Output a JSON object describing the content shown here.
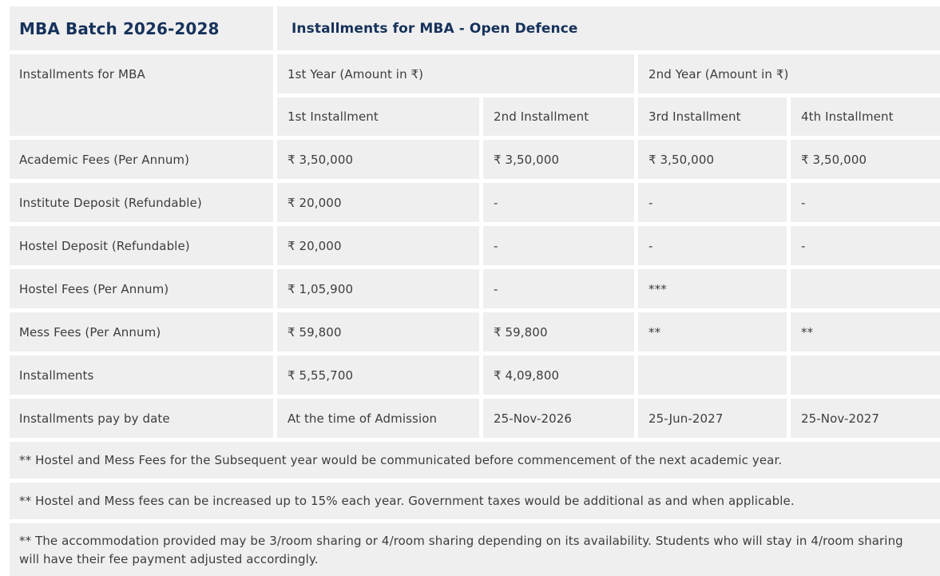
{
  "colors": {
    "heading_navy": "#16325b",
    "cell_background": "#efefef",
    "body_text": "#3d3d3d",
    "page_background": "#ffffff"
  },
  "table": {
    "batch_title": "MBA Batch 2026-2028",
    "main_title": "Installments for MBA - Open Defence",
    "group_label": "Installments for MBA",
    "year1_header": "1st Year (Amount in ₹)",
    "year2_header": "2nd Year (Amount in ₹)",
    "installment_headers": [
      "1st Installment",
      "2nd Installment",
      "3rd Installment",
      "4th Installment"
    ],
    "rows": [
      {
        "label": "Academic Fees (Per Annum)",
        "values": [
          "₹ 3,50,000",
          "₹ 3,50,000",
          "₹ 3,50,000",
          "₹ 3,50,000"
        ]
      },
      {
        "label": "Institute Deposit (Refundable)",
        "values": [
          "₹ 20,000",
          "-",
          "-",
          "-"
        ]
      },
      {
        "label": "Hostel Deposit (Refundable)",
        "values": [
          "₹ 20,000",
          "-",
          "-",
          "-"
        ]
      },
      {
        "label": "Hostel Fees (Per Annum)",
        "values": [
          "₹ 1,05,900",
          "-",
          "***",
          ""
        ]
      },
      {
        "label": "Mess Fees (Per Annum)",
        "values": [
          "₹ 59,800",
          "₹ 59,800",
          "**",
          "**"
        ]
      },
      {
        "label": "Installments",
        "values": [
          "₹ 5,55,700",
          "₹ 4,09,800",
          "",
          ""
        ]
      },
      {
        "label": "Installments pay by date",
        "values": [
          "At the time of Admission",
          "25-Nov-2026",
          "25-Jun-2027",
          "25-Nov-2027"
        ]
      }
    ],
    "notes": [
      "** Hostel and Mess Fees for the Subsequent year would be communicated before commencement of the next academic year.",
      "** Hostel and Mess fees can be increased up to 15% each year. Government taxes would be additional as and when applicable.",
      "** The accommodation provided may be 3/room sharing or 4/room sharing depending on its availability. Students who will stay in 4/room sharing will have their fee payment adjusted accordingly."
    ]
  }
}
